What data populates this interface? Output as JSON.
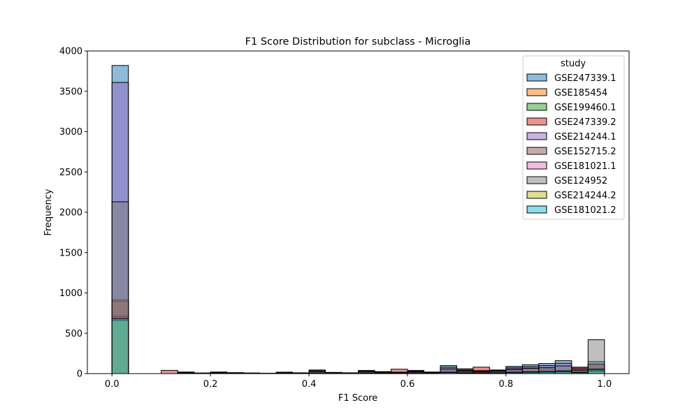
{
  "chart_data": {
    "type": "bar",
    "title": "F1 Score Distribution for subclass - Microglia",
    "xlabel": "F1 Score",
    "ylabel": "Frequency",
    "xlim": [
      -0.05,
      1.05
    ],
    "ylim": [
      0,
      4000
    ],
    "xticks": [
      0.0,
      0.2,
      0.4,
      0.6,
      0.8,
      1.0
    ],
    "xtick_labels": [
      "0.0",
      "0.2",
      "0.4",
      "0.6",
      "0.8",
      "1.0"
    ],
    "yticks": [
      0,
      500,
      1000,
      1500,
      2000,
      2500,
      3000,
      3500,
      4000
    ],
    "ytick_labels": [
      "0",
      "500",
      "1000",
      "1500",
      "2000",
      "2500",
      "3000",
      "3500",
      "4000"
    ],
    "grid": false,
    "legend_placement": "top-right",
    "legend_title": "study",
    "bin_edges": [
      0.0,
      0.0333,
      0.0667,
      0.1,
      0.1333,
      0.1667,
      0.2,
      0.2333,
      0.2667,
      0.3,
      0.3333,
      0.3667,
      0.4,
      0.4333,
      0.4667,
      0.5,
      0.5333,
      0.5667,
      0.6,
      0.6333,
      0.6667,
      0.7,
      0.7333,
      0.7667,
      0.8,
      0.8333,
      0.8667,
      0.9,
      0.9333,
      0.9667,
      1.0
    ],
    "series": [
      {
        "name": "GSE247339.1",
        "color": "#1f77b4",
        "values": [
          3820,
          0,
          0,
          0,
          20,
          8,
          20,
          12,
          8,
          5,
          18,
          10,
          45,
          15,
          10,
          40,
          25,
          20,
          40,
          20,
          100,
          50,
          40,
          45,
          90,
          110,
          125,
          160,
          70,
          150
        ]
      },
      {
        "name": "GSE185454",
        "color": "#ff7f0e",
        "values": [
          920,
          0,
          0,
          0,
          5,
          3,
          5,
          3,
          2,
          2,
          4,
          3,
          8,
          5,
          3,
          8,
          5,
          5,
          10,
          5,
          20,
          15,
          10,
          10,
          20,
          25,
          30,
          35,
          20,
          40
        ]
      },
      {
        "name": "GSE199460.1",
        "color": "#2ca02c",
        "values": [
          690,
          0,
          0,
          0,
          3,
          2,
          3,
          2,
          1,
          1,
          2,
          2,
          5,
          3,
          2,
          5,
          3,
          3,
          5,
          3,
          10,
          8,
          6,
          5,
          10,
          12,
          15,
          18,
          10,
          25
        ]
      },
      {
        "name": "GSE247339.2",
        "color": "#d62728",
        "values": [
          720,
          0,
          0,
          40,
          10,
          5,
          10,
          8,
          5,
          3,
          10,
          5,
          20,
          10,
          5,
          20,
          15,
          55,
          25,
          15,
          50,
          60,
          80,
          40,
          60,
          70,
          60,
          40,
          80,
          110
        ]
      },
      {
        "name": "GSE214244.1",
        "color": "#9467bd",
        "values": [
          3610,
          0,
          0,
          0,
          15,
          6,
          15,
          10,
          6,
          4,
          14,
          8,
          35,
          12,
          8,
          32,
          20,
          15,
          32,
          16,
          80,
          40,
          32,
          36,
          72,
          88,
          100,
          128,
          56,
          120
        ]
      },
      {
        "name": "GSE152715.2",
        "color": "#8c564b",
        "values": [
          900,
          0,
          0,
          0,
          5,
          3,
          5,
          3,
          2,
          2,
          4,
          3,
          8,
          5,
          3,
          8,
          5,
          5,
          10,
          5,
          20,
          15,
          10,
          10,
          20,
          25,
          30,
          35,
          20,
          60
        ]
      },
      {
        "name": "GSE181021.1",
        "color": "#e377c2",
        "values": [
          700,
          0,
          0,
          0,
          4,
          2,
          4,
          2,
          1,
          1,
          3,
          2,
          6,
          3,
          2,
          6,
          4,
          4,
          8,
          4,
          15,
          10,
          8,
          8,
          15,
          20,
          25,
          28,
          15,
          35
        ]
      },
      {
        "name": "GSE124952",
        "color": "#7f7f7f",
        "values": [
          2130,
          0,
          0,
          0,
          10,
          5,
          10,
          6,
          4,
          3,
          10,
          6,
          25,
          8,
          5,
          22,
          14,
          10,
          22,
          10,
          60,
          30,
          22,
          25,
          50,
          65,
          75,
          95,
          40,
          420
        ]
      },
      {
        "name": "GSE214244.2",
        "color": "#bcbd22",
        "values": [
          660,
          0,
          0,
          0,
          3,
          2,
          3,
          2,
          1,
          1,
          2,
          2,
          5,
          3,
          2,
          5,
          3,
          3,
          5,
          3,
          10,
          8,
          6,
          5,
          10,
          12,
          15,
          18,
          10,
          30
        ]
      },
      {
        "name": "GSE181021.2",
        "color": "#17becf",
        "values": [
          680,
          0,
          0,
          0,
          4,
          2,
          4,
          2,
          1,
          1,
          3,
          2,
          6,
          3,
          2,
          6,
          4,
          4,
          8,
          4,
          15,
          10,
          8,
          8,
          15,
          20,
          25,
          28,
          15,
          50
        ]
      }
    ]
  }
}
